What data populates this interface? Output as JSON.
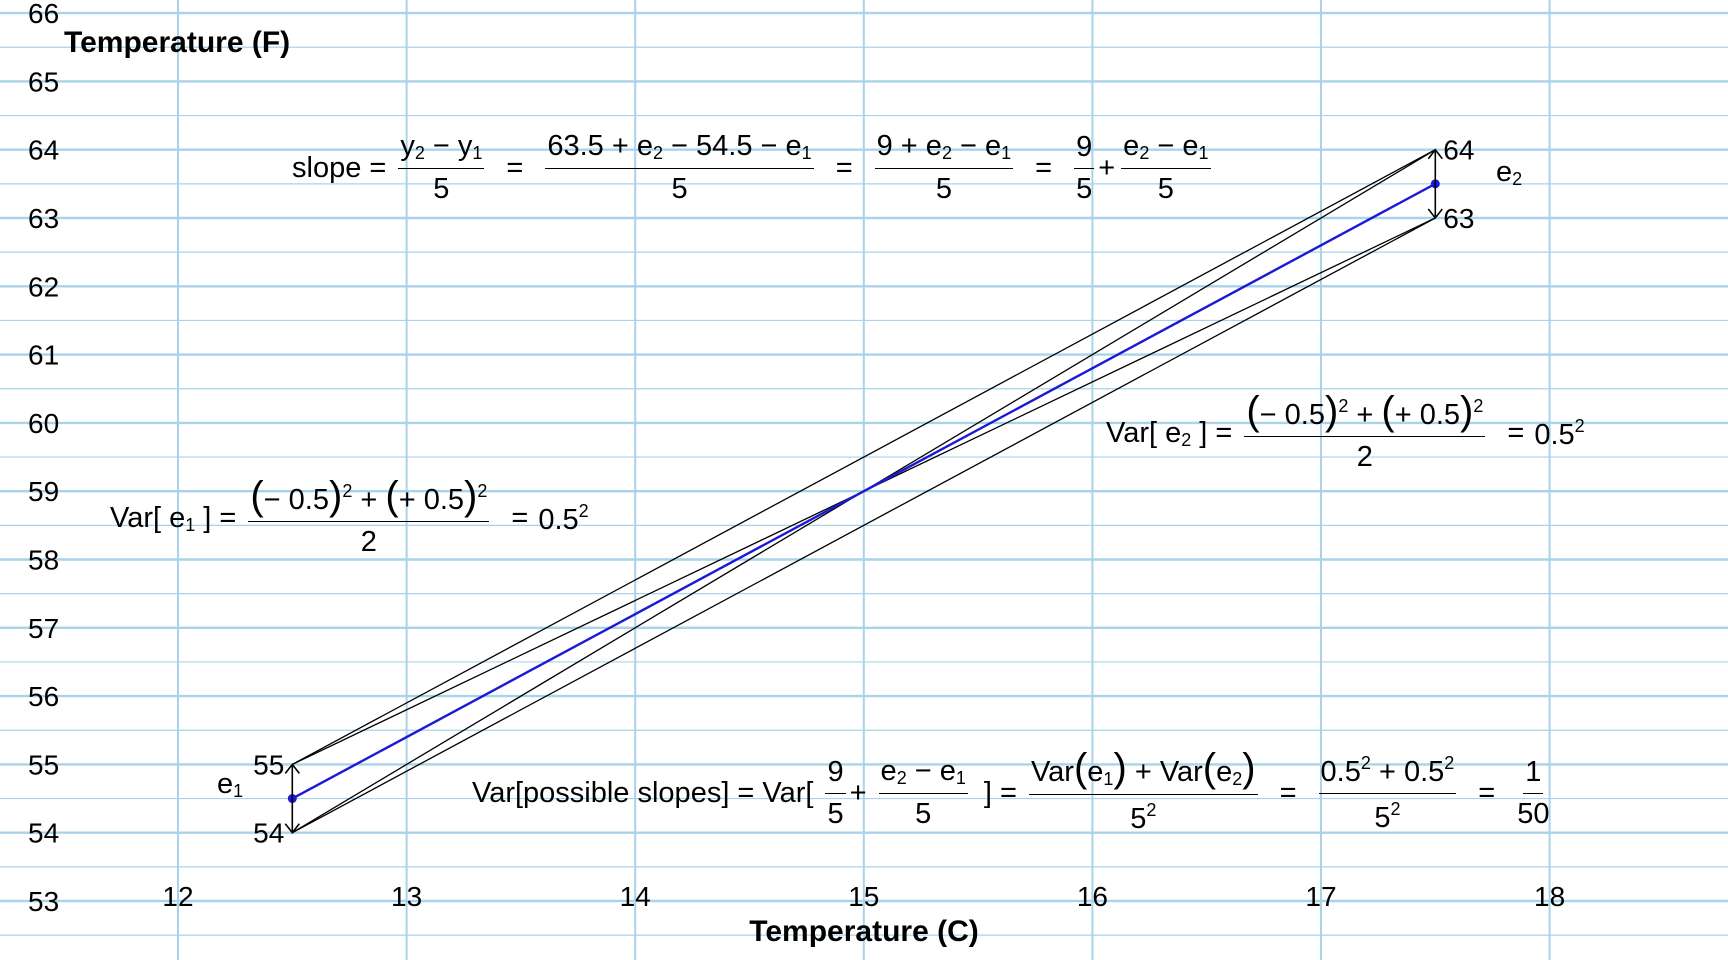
{
  "chart_data": {
    "type": "line",
    "xlabel": "Temperature (C)",
    "ylabel": "Temperature (F)",
    "xlim": [
      11,
      18.8
    ],
    "ylim": [
      52,
      66.2
    ],
    "x_ticks": [
      "12",
      "13",
      "14",
      "15",
      "16",
      "17",
      "18"
    ],
    "y_ticks": [
      "53",
      "54",
      "55",
      "56",
      "57",
      "58",
      "59",
      "60",
      "61",
      "62",
      "63",
      "64",
      "65",
      "66"
    ],
    "grid": true,
    "colors": {
      "grid": "#a9d3ea",
      "fit_line": "#1a1ad6",
      "envelope": "#000000"
    },
    "fit_line": {
      "x": [
        12.5,
        17.5
      ],
      "y": [
        54.5,
        63.5
      ]
    },
    "envelope_lines": [
      {
        "x": [
          12.5,
          17.5
        ],
        "y": [
          55,
          64
        ]
      },
      {
        "x": [
          12.5,
          17.5
        ],
        "y": [
          54,
          63
        ]
      },
      {
        "x": [
          12.5,
          17.5
        ],
        "y": [
          55,
          63
        ]
      },
      {
        "x": [
          12.5,
          17.5
        ],
        "y": [
          54,
          64
        ]
      }
    ],
    "points": [
      {
        "x": 12.5,
        "y": 54.5
      },
      {
        "x": 17.5,
        "y": 63.5
      }
    ],
    "error_bars": [
      {
        "x": 12.5,
        "y_low": 54,
        "y_high": 55,
        "label_low": "54",
        "label_high": "55"
      },
      {
        "x": 17.5,
        "y_low": 63,
        "y_high": 64,
        "label_low": "63",
        "label_high": "64"
      }
    ]
  },
  "labels": {
    "e1_letter": "e",
    "e1_sub": "1",
    "e2_letter": "e",
    "e2_sub": "2"
  },
  "equations": {
    "slope": {
      "lhs": "slope =",
      "f1_num_a": "y",
      "f1_num_a_sub": "2",
      "f1_num_op": " − ",
      "f1_num_b": "y",
      "f1_num_b_sub": "1",
      "f1_den": "5",
      "eq": "=",
      "f2_num_a": "63.5 + e",
      "f2_num_a_sub": "2",
      "f2_num_b": " − 54.5 − e",
      "f2_num_b_sub": "1",
      "f2_den": "5",
      "f3_num_a": "9 + e",
      "f3_num_a_sub": "2",
      "f3_num_b": " − e",
      "f3_num_b_sub": "1",
      "f3_den": "5",
      "f4_num": "9",
      "f4_den": "5",
      "plus": "+",
      "f5_num_a": "e",
      "f5_num_a_sub": "2",
      "f5_num_b": " − e",
      "f5_num_b_sub": "1",
      "f5_den": "5"
    },
    "var_e1": {
      "lhs_a": "Var[ e",
      "lhs_sub": "1",
      "lhs_b": " ] =",
      "num_a": "− 0.5",
      "num_sq": "2",
      "num_plus": " + ",
      "num_b": "+ 0.5",
      "den": "2",
      "eq": "=",
      "rhs": "0.5",
      "rhs_sup": "2"
    },
    "var_e2": {
      "lhs_a": "Var[ e",
      "lhs_sub": "2",
      "lhs_b": " ] =",
      "num_a": "− 0.5",
      "num_sq": "2",
      "num_plus": " + ",
      "num_b": "+ 0.5",
      "den": "2",
      "eq": "=",
      "rhs": "0.5",
      "rhs_sup": "2"
    },
    "var_slopes": {
      "lhs": "Var[possible slopes] = Var[",
      "f1_num": "9",
      "f1_den": "5",
      "plus": "+",
      "f2_num_a": "e",
      "f2_num_a_sub": "2",
      "f2_num_b": " − e",
      "f2_num_b_sub": "1",
      "f2_den": "5",
      "close": "] =",
      "f3_num_a": "Var",
      "f3_num_e1": "e",
      "f3_num_e1_sub": "1",
      "f3_num_plus": " + Var",
      "f3_num_e2": "e",
      "f3_num_e2_sub": "2",
      "f3_den": "5",
      "f3_den_sup": "2",
      "eq": "=",
      "f4_num_a": "0.5",
      "f4_num_a_sup": "2",
      "f4_num_plus": " + 0.5",
      "f4_num_b_sup": "2",
      "f4_den": "5",
      "f4_den_sup": "2",
      "f5_num": "1",
      "f5_den": "50"
    }
  }
}
